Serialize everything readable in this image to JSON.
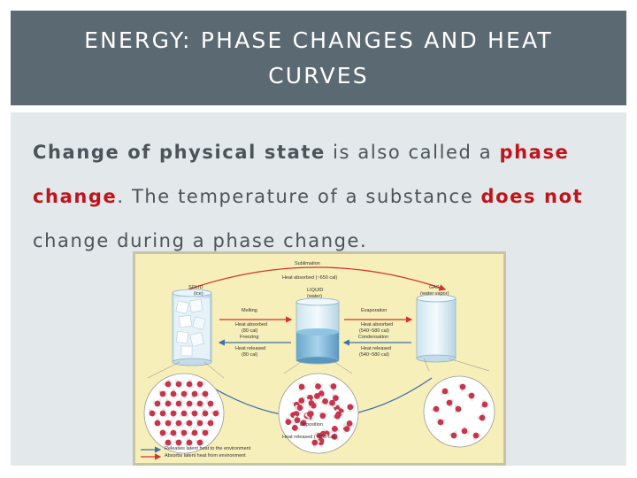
{
  "slide": {
    "title": "ENERGY: PHASE CHANGES AND HEAT CURVES",
    "body": {
      "part1": "Change of physical state",
      "part2": " is also called a ",
      "part3": "phase change",
      "part4": ". The temperature of a substance ",
      "part5": "does not",
      "part6": " change during a phase change."
    }
  },
  "figure": {
    "sublimation": "Sublimation",
    "sublimation_heat": "Heat absorbed (~650 cal)",
    "solid": "SOLID",
    "solid_sub": "(ice)",
    "liquid": "LIQUID",
    "liquid_sub": "(water)",
    "gas": "GAS",
    "gas_sub": "(water vapor)",
    "melting": "Melting",
    "melting_heat": "Heat absorbed",
    "melting_cal": "(80 cal)",
    "freezing": "Freezing",
    "freezing_heat": "Heat released",
    "freezing_cal": "(80 cal)",
    "evaporation": "Evaporation",
    "evaporation_heat": "Heat absorbed",
    "evaporation_cal": "(540~580 cal)",
    "condensation": "Condensation",
    "condensation_heat": "Heat released",
    "condensation_cal": "(540~580 cal)",
    "deposition": "Deposition",
    "deposition_heat": "Heat released (~650 cal)",
    "legend_release": "Releases latent heat to the environment",
    "legend_absorb": "Absorbs latent heat from environment"
  },
  "colors": {
    "title_bg": "#5b6972",
    "content_bg": "#e3e8ea",
    "text": "#4b545a",
    "accent": "#c0141c",
    "figure_bg": "#f6efb9"
  }
}
